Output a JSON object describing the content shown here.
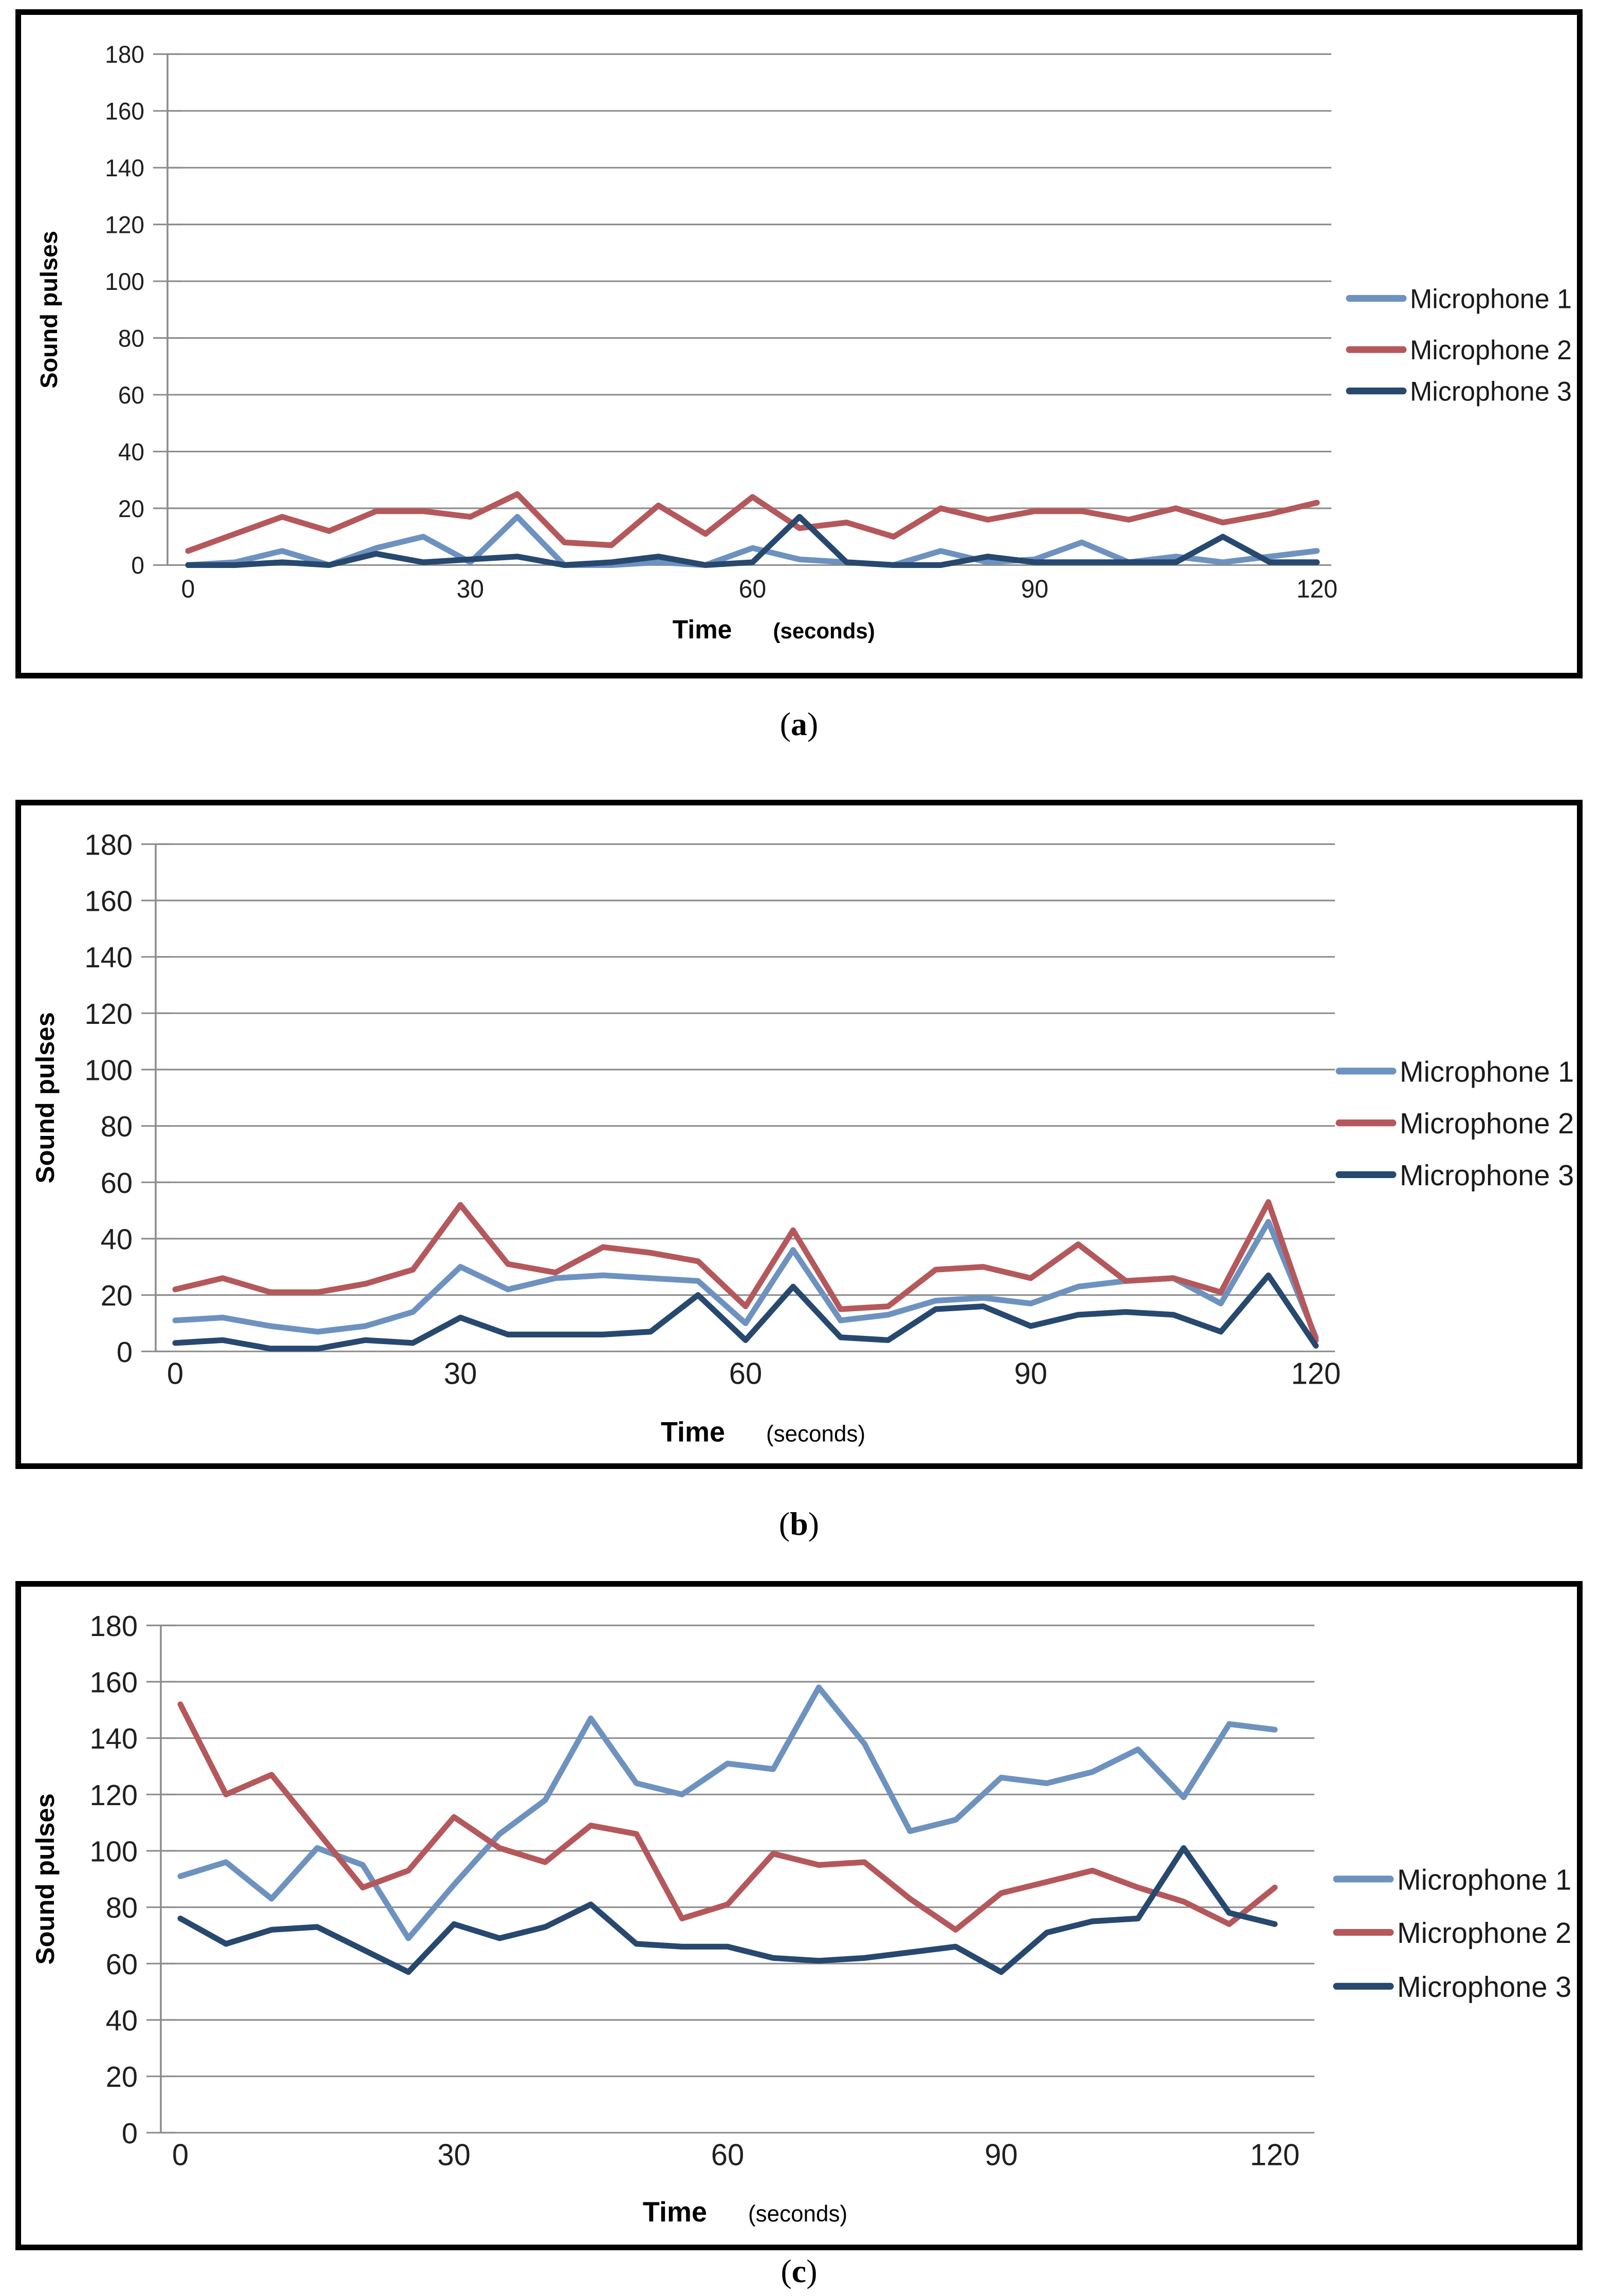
{
  "page": {
    "background": "#ffffff"
  },
  "colors": {
    "microphone_1": "#6D92BF",
    "microphone_2": "#B4585C",
    "microphone_3": "#27486F",
    "gridline": "#8B8B8B",
    "tick_text": "#1F1F1F",
    "border": "#000000"
  },
  "captions": {
    "a": {
      "open": "(",
      "letter": "a",
      "close": ")"
    },
    "b": {
      "open": "(",
      "letter": "b",
      "close": ")"
    },
    "c": {
      "open": "(",
      "letter": "c",
      "close": ")"
    }
  },
  "chart_data": [
    {
      "id": "a",
      "type": "line",
      "title": "",
      "xlabel": "Time",
      "xlabel_unit": "(seconds)",
      "ylabel": "Sound pulses",
      "ylim": [
        0,
        180
      ],
      "ytick_step": 20,
      "x": [
        0,
        5,
        10,
        15,
        20,
        25,
        30,
        35,
        40,
        45,
        50,
        55,
        60,
        65,
        70,
        75,
        80,
        85,
        90,
        95,
        100,
        105,
        110,
        115,
        120
      ],
      "x_ticks": [
        0,
        30,
        60,
        90,
        120
      ],
      "grid": true,
      "legend_position": "right",
      "series": [
        {
          "name": "Microphone 1",
          "color": "#6D92BF",
          "values": [
            0,
            1,
            5,
            0,
            6,
            10,
            1,
            17,
            0,
            0,
            1,
            0,
            6,
            2,
            1,
            0,
            5,
            1,
            2,
            8,
            1,
            3,
            1,
            3,
            5
          ]
        },
        {
          "name": "Microphone 2",
          "color": "#B4585C",
          "values": [
            5,
            11,
            17,
            12,
            19,
            19,
            17,
            25,
            8,
            7,
            21,
            11,
            24,
            13,
            15,
            10,
            20,
            16,
            19,
            19,
            16,
            20,
            15,
            18,
            22
          ]
        },
        {
          "name": "Microphone 3",
          "color": "#27486F",
          "values": [
            0,
            0,
            1,
            0,
            4,
            1,
            2,
            3,
            0,
            1,
            3,
            0,
            1,
            17,
            1,
            0,
            0,
            3,
            1,
            1,
            1,
            1,
            10,
            1,
            1
          ]
        }
      ],
      "layout": {
        "y_top": 75,
        "y_bottom": 1052,
        "axis_x": 285,
        "x0": 325,
        "x1": 2522,
        "grid_right": 2550,
        "tick_font": 46,
        "ylabel_font": 46,
        "ylabel_x": 70,
        "xtitle_dy": 140,
        "xtitle_font": 50,
        "xunit_font": 42,
        "time_bold": true,
        "legend_x": 2585,
        "legend_rows": [
          542,
          640,
          719
        ],
        "legend_font": 52
      }
    },
    {
      "id": "b",
      "type": "line",
      "title": "",
      "xlabel": "Time",
      "xlabel_unit": "(seconds)",
      "ylabel": "Sound pulses",
      "ylim": [
        0,
        180
      ],
      "ytick_step": 20,
      "x": [
        0,
        5,
        10,
        15,
        20,
        25,
        30,
        35,
        40,
        45,
        50,
        55,
        60,
        65,
        70,
        75,
        80,
        85,
        90,
        95,
        100,
        105,
        110,
        115,
        120
      ],
      "x_ticks": [
        0,
        30,
        60,
        90,
        120
      ],
      "grid": true,
      "legend_position": "right",
      "series": [
        {
          "name": "Microphone 1",
          "color": "#6D92BF",
          "values": [
            11,
            12,
            9,
            7,
            9,
            14,
            30,
            22,
            26,
            27,
            26,
            25,
            10,
            36,
            11,
            13,
            18,
            19,
            17,
            23,
            25,
            26,
            17,
            46,
            5
          ]
        },
        {
          "name": "Microphone 2",
          "color": "#B4585C",
          "values": [
            22,
            26,
            21,
            21,
            24,
            29,
            52,
            31,
            28,
            37,
            35,
            32,
            16,
            43,
            15,
            16,
            29,
            30,
            26,
            38,
            25,
            26,
            21,
            53,
            4
          ]
        },
        {
          "name": "Microphone 3",
          "color": "#27486F",
          "values": [
            3,
            4,
            1,
            1,
            4,
            3,
            12,
            6,
            6,
            6,
            7,
            20,
            4,
            23,
            5,
            4,
            15,
            16,
            9,
            13,
            14,
            13,
            7,
            27,
            2
          ]
        }
      ],
      "layout": {
        "y_top": 74,
        "y_bottom": 1044,
        "axis_x": 262,
        "x0": 300,
        "x1": 2520,
        "grid_right": 2557,
        "tick_font": 56,
        "ylabel_font": 50,
        "ylabel_x": 64,
        "xtitle_dy": 172,
        "xtitle_font": 54,
        "xunit_font": 44,
        "time_bold": false,
        "legend_x": 2565,
        "legend_rows": [
          508,
          607,
          706
        ],
        "legend_font": 56
      }
    },
    {
      "id": "c",
      "type": "line",
      "title": "",
      "xlabel": "Time",
      "xlabel_unit": "(seconds)",
      "ylabel": "Sound pulses",
      "ylim": [
        0,
        180
      ],
      "ytick_step": 20,
      "x": [
        0,
        5,
        10,
        15,
        20,
        25,
        30,
        35,
        40,
        45,
        50,
        55,
        60,
        65,
        70,
        75,
        80,
        85,
        90,
        95,
        100,
        105,
        110,
        115,
        120
      ],
      "x_ticks": [
        0,
        30,
        60,
        90,
        120
      ],
      "grid": true,
      "legend_position": "right",
      "series": [
        {
          "name": "Microphone 1",
          "color": "#6D92BF",
          "values": [
            91,
            96,
            83,
            101,
            95,
            69,
            88,
            106,
            118,
            147,
            124,
            120,
            131,
            129,
            158,
            138,
            107,
            111,
            126,
            124,
            128,
            136,
            119,
            145,
            143
          ]
        },
        {
          "name": "Microphone 2",
          "color": "#B4585C",
          "values": [
            152,
            120,
            127,
            107,
            87,
            93,
            112,
            101,
            96,
            109,
            106,
            76,
            81,
            99,
            95,
            96,
            83,
            72,
            85,
            89,
            93,
            87,
            82,
            74,
            87
          ]
        },
        {
          "name": "Microphone 3",
          "color": "#27486F",
          "values": [
            76,
            67,
            72,
            73,
            65,
            57,
            74,
            69,
            73,
            81,
            67,
            66,
            66,
            62,
            61,
            62,
            64,
            66,
            57,
            71,
            75,
            76,
            101,
            78,
            74
          ]
        }
      ],
      "layout": {
        "y_top": 74,
        "y_bottom": 1044,
        "axis_x": 272,
        "x0": 310,
        "x1": 2440,
        "grid_right": 2517,
        "tick_font": 56,
        "ylabel_font": 50,
        "ylabel_x": 64,
        "xtitle_dy": 170,
        "xtitle_font": 54,
        "xunit_font": 44,
        "time_bold": false,
        "legend_x": 2560,
        "legend_rows": [
          559,
          661,
          764
        ],
        "legend_font": 56
      }
    }
  ]
}
